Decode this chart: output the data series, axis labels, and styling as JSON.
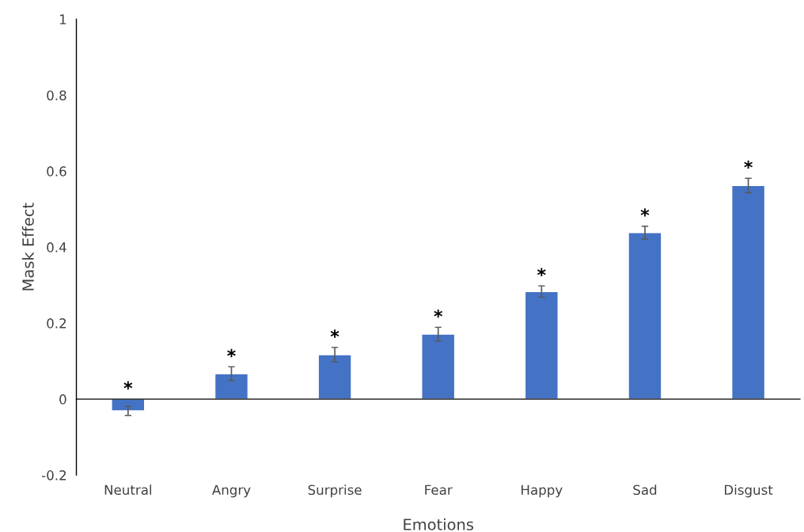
{
  "chart_data": {
    "type": "bar",
    "xlabel": "Emotions",
    "ylabel": "Mask Effect",
    "categories": [
      "Neutral",
      "Angry",
      "Surprise",
      "Fear",
      "Happy",
      "Sad",
      "Disgust"
    ],
    "values": [
      -0.031,
      0.067,
      0.117,
      0.171,
      0.283,
      0.438,
      0.562
    ],
    "errors": [
      0.012,
      0.018,
      0.019,
      0.018,
      0.015,
      0.017,
      0.019
    ],
    "color": "#4472c4",
    "ylim": [
      -0.2,
      1
    ],
    "yticks": [
      -0.2,
      0,
      0.2,
      0.4,
      0.6,
      0.8,
      1
    ],
    "annotations": [
      "*",
      "*",
      "*",
      "*",
      "*",
      "*",
      "*"
    ],
    "legend": false
  }
}
